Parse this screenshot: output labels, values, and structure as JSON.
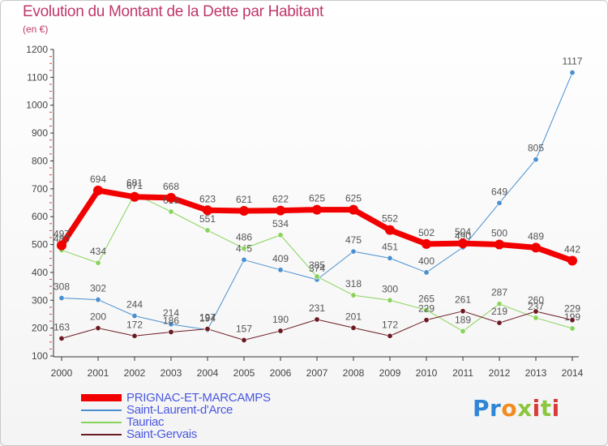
{
  "title": "Evolution du Montant de la Dette par Habitant",
  "subtitle": "(en €)",
  "logo": {
    "text": "Proxiti",
    "letters": [
      {
        "ch": "P",
        "color": "#2e86d6"
      },
      {
        "ch": "r",
        "color": "#2e86d6"
      },
      {
        "ch": "o",
        "color": "#f28c1e"
      },
      {
        "ch": "x",
        "color": "#8cc63f"
      },
      {
        "ch": "i",
        "color": "#d93a3a"
      },
      {
        "ch": "t",
        "color": "#8cc63f"
      },
      {
        "ch": "i",
        "color": "#d93a3a"
      }
    ]
  },
  "chart_data": {
    "type": "line",
    "x": [
      2000,
      2001,
      2002,
      2003,
      2004,
      2005,
      2006,
      2007,
      2008,
      2009,
      2010,
      2011,
      2012,
      2013,
      2014
    ],
    "ylim": [
      100,
      1200
    ],
    "yticks": [
      100,
      200,
      300,
      400,
      500,
      600,
      700,
      800,
      900,
      1000,
      1100,
      1200
    ],
    "grid": false,
    "legend_position": "bottom-left",
    "series": [
      {
        "name": "Saint-Laurent-d'Arce",
        "color": "#4a8fd0",
        "width": 1,
        "values": [
          308,
          302,
          244,
          214,
          194,
          445,
          409,
          374,
          475,
          451,
          400,
          490,
          649,
          805,
          1117
        ],
        "labels": [
          "308",
          "302",
          "244",
          "214",
          "194",
          "445",
          "409",
          "374",
          "475",
          "451",
          "400",
          "490",
          "649",
          "805",
          "1117"
        ]
      },
      {
        "name": "Tauriac",
        "color": "#88d35a",
        "width": 1,
        "values": [
          480,
          434,
          681,
          618,
          551,
          486,
          534,
          385,
          318,
          300,
          265,
          189,
          287,
          237,
          199
        ],
        "labels": [
          "480",
          "434",
          "681",
          "618",
          "551",
          "486",
          "534",
          "385",
          "318",
          "300",
          "265",
          "189",
          "287",
          "237",
          "199"
        ]
      },
      {
        "name": "Saint-Gervais",
        "color": "#6b1a22",
        "width": 1,
        "values": [
          163,
          200,
          172,
          186,
          197,
          157,
          190,
          231,
          201,
          172,
          229,
          261,
          219,
          260,
          229
        ],
        "labels": [
          "163",
          "200",
          "172",
          "186",
          "197",
          "157",
          "190",
          "231",
          "201",
          "172",
          "229",
          "261",
          "219",
          "260",
          "229"
        ]
      },
      {
        "name": "PRIGNAC-ET-MARCAMPS",
        "color": "#f20000",
        "width": 7,
        "values": [
          497,
          694,
          671,
          668,
          623,
          621,
          622,
          625,
          625,
          552,
          502,
          504,
          500,
          489,
          442
        ],
        "labels": [
          "497",
          "694",
          "671",
          "668",
          "623",
          "621",
          "622",
          "625",
          "625",
          "552",
          "502",
          "504",
          "500",
          "489",
          "442"
        ]
      }
    ],
    "legend_order": [
      "PRIGNAC-ET-MARCAMPS",
      "Saint-Laurent-d'Arce",
      "Tauriac",
      "Saint-Gervais"
    ]
  }
}
